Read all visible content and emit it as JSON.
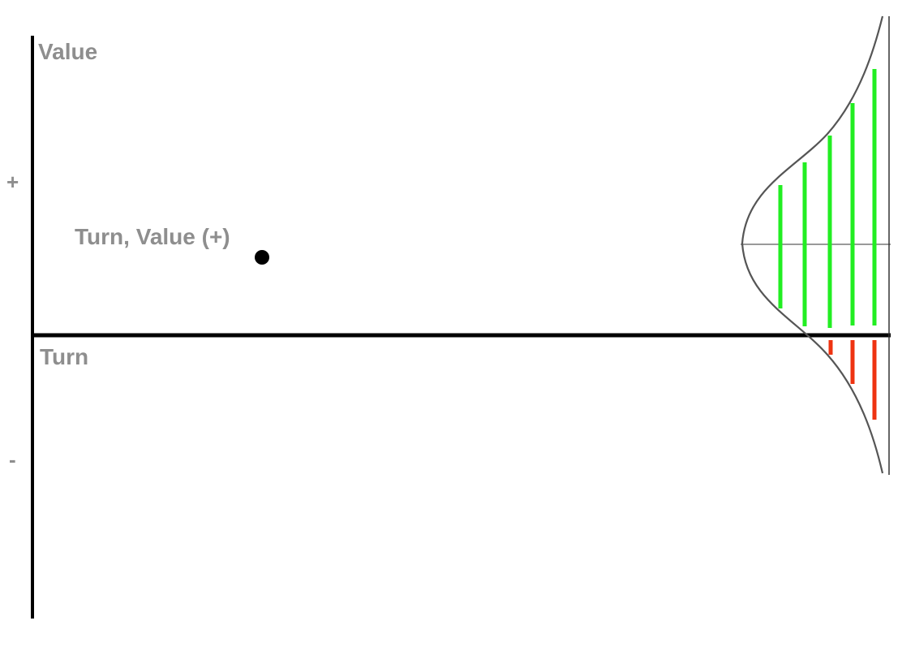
{
  "axes": {
    "y_label": "Value",
    "x_label": "Turn",
    "plus_sign": "+",
    "minus_sign": "-"
  },
  "point": {
    "label": "Turn, Value (+)"
  },
  "distribution": {
    "curve": "normal-bell-curve",
    "positive_color": "#22ee22",
    "negative_color": "#ee3311",
    "axis_color": "#000000",
    "label_color": "#8e8e8e"
  }
}
